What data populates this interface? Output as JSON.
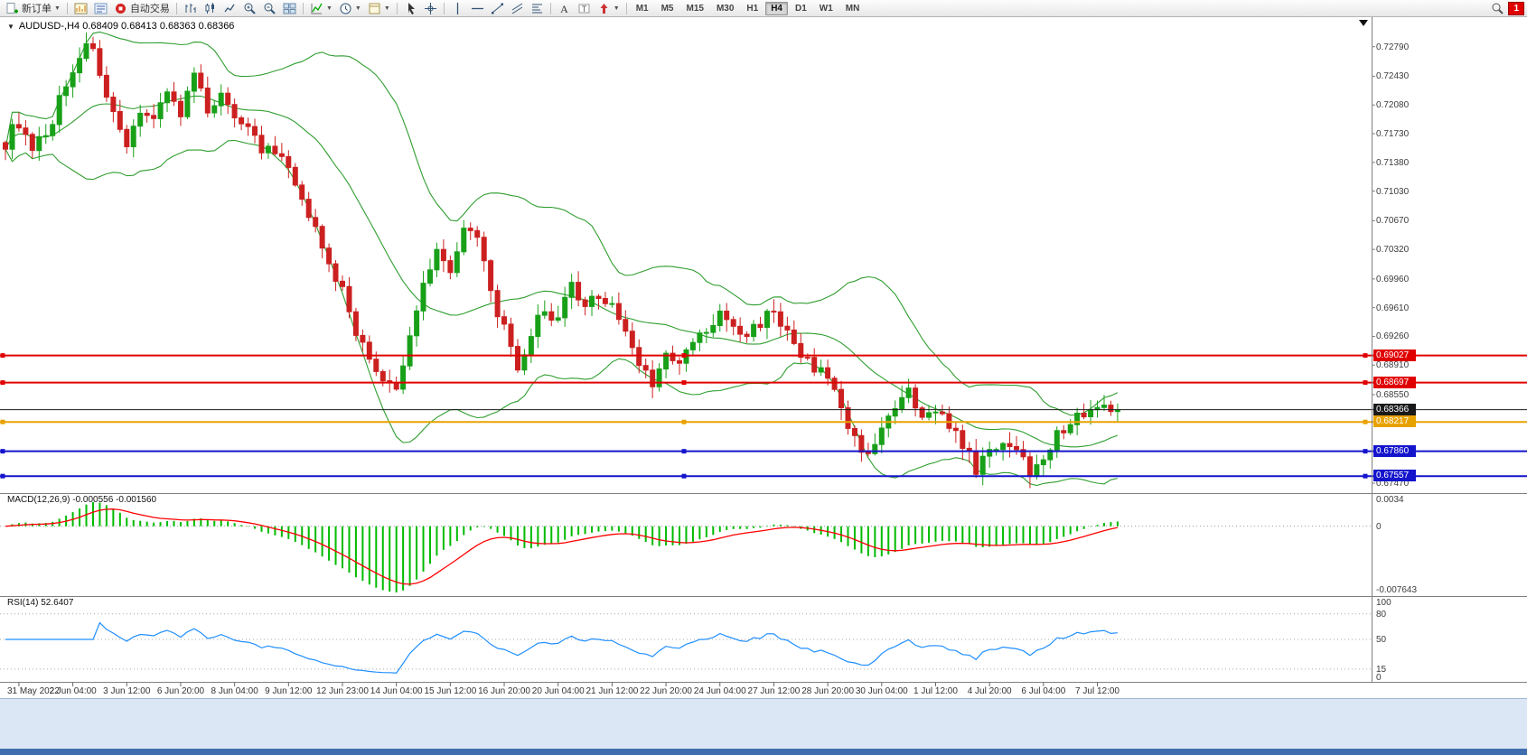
{
  "toolbar": {
    "new_order_label": "新订单",
    "autotrading_label": "自动交易",
    "timeframes": [
      "M1",
      "M5",
      "M15",
      "M30",
      "H1",
      "H4",
      "D1",
      "W1",
      "MN"
    ],
    "active_timeframe": "H4",
    "notification_count": "1"
  },
  "chart": {
    "symbol_line": "AUDUSD-,H4  0.68409 0.68413 0.68363 0.68366",
    "ohlc": {
      "open": "0.68409",
      "high": "0.68413",
      "low": "0.68363",
      "close": "0.68366"
    },
    "price_axis_labels": [
      "0.72790",
      "0.72430",
      "0.72080",
      "0.71730",
      "0.71380",
      "0.71030",
      "0.70670",
      "0.70320",
      "0.69960",
      "0.69610",
      "0.69260",
      "0.68910",
      "0.68550",
      "0.67470"
    ],
    "levels": [
      {
        "price": 0.69027,
        "label": "0.69027",
        "color": "#e00000",
        "width": 2,
        "handles": true
      },
      {
        "price": 0.68697,
        "label": "0.68697",
        "color": "#e00000",
        "width": 2,
        "handles": true
      },
      {
        "price": 0.68366,
        "label": "0.68366",
        "color": "#1a1a1a",
        "width": 1,
        "handles": false
      },
      {
        "price": 0.68217,
        "label": "0.68217",
        "color": "#e8a200",
        "width": 2,
        "handles": true
      },
      {
        "price": 0.6786,
        "label": "0.67860",
        "color": "#1414cc",
        "width": 2,
        "handles": true
      },
      {
        "price": 0.67557,
        "label": "0.67557",
        "color": "#1414cc",
        "width": 2,
        "handles": true
      }
    ],
    "colors": {
      "bull": "#18a018",
      "bear": "#cc2020",
      "bands": "#2f9e2f",
      "macd_hist": "#00bb00",
      "macd_signal": "#ff0000",
      "rsi": "#1f8fff",
      "current": "#1a1a1a"
    }
  },
  "macd": {
    "label": "MACD(12,26,9) -0.000556 -0.001560",
    "axis": [
      {
        "value": 0.0034,
        "text": "0.0034"
      },
      {
        "value": 0,
        "text": "0"
      },
      {
        "value": -0.007643,
        "text": "-0.007643"
      }
    ]
  },
  "rsi": {
    "label": "RSI(14) 52.6407",
    "axis": [
      {
        "value": 100,
        "text": "100"
      },
      {
        "value": 80,
        "text": "80"
      },
      {
        "value": 50,
        "text": "50"
      },
      {
        "value": 15,
        "text": "15"
      },
      {
        "value": 0,
        "text": "0"
      }
    ],
    "dashed_levels": [
      80,
      50,
      15
    ]
  },
  "time_axis": [
    "31 May 2022",
    "2 Jun 04:00",
    "3 Jun 12:00",
    "6 Jun 20:00",
    "8 Jun 04:00",
    "9 Jun 12:00",
    "12 Jun 23:00",
    "14 Jun 04:00",
    "15 Jun 12:00",
    "16 Jun 20:00",
    "20 Jun 04:00",
    "21 Jun 12:00",
    "22 Jun 20:00",
    "24 Jun 04:00",
    "27 Jun 12:00",
    "28 Jun 20:00",
    "30 Jun 04:00",
    "1 Jul 12:00",
    "4 Jul 20:00",
    "6 Jul 04:00",
    "7 Jul 12:00"
  ],
  "chart_data": {
    "type": "candlestick",
    "symbol": "AUDUSD-",
    "timeframe": "H4",
    "title": "AUDUSD-,H4",
    "n_candles": 166,
    "last_close": 0.68366,
    "ylim": [
      0.6735,
      0.7315
    ],
    "wiggle": 0.0016,
    "anchors": [
      [
        0,
        0.7165
      ],
      [
        2,
        0.7185
      ],
      [
        4,
        0.715
      ],
      [
        6,
        0.7168
      ],
      [
        8,
        0.7215
      ],
      [
        11,
        0.7268
      ],
      [
        13,
        0.7282
      ],
      [
        15,
        0.7215
      ],
      [
        18,
        0.7152
      ],
      [
        20,
        0.7205
      ],
      [
        22,
        0.719
      ],
      [
        24,
        0.7228
      ],
      [
        26,
        0.7195
      ],
      [
        28,
        0.7242
      ],
      [
        30,
        0.7205
      ],
      [
        32,
        0.7218
      ],
      [
        34,
        0.7198
      ],
      [
        36,
        0.7185
      ],
      [
        38,
        0.7152
      ],
      [
        40,
        0.7148
      ],
      [
        42,
        0.7132
      ],
      [
        44,
        0.7085
      ],
      [
        46,
        0.7068
      ],
      [
        48,
        0.7008
      ],
      [
        50,
        0.6985
      ],
      [
        52,
        0.6932
      ],
      [
        54,
        0.6898
      ],
      [
        56,
        0.6872
      ],
      [
        58,
        0.6858
      ],
      [
        60,
        0.6925
      ],
      [
        62,
        0.6992
      ],
      [
        64,
        0.7035
      ],
      [
        66,
        0.7002
      ],
      [
        68,
        0.7065
      ],
      [
        70,
        0.7042
      ],
      [
        72,
        0.698
      ],
      [
        74,
        0.6935
      ],
      [
        76,
        0.6878
      ],
      [
        78,
        0.693
      ],
      [
        80,
        0.6958
      ],
      [
        82,
        0.6945
      ],
      [
        84,
        0.6988
      ],
      [
        86,
        0.6955
      ],
      [
        88,
        0.6978
      ],
      [
        90,
        0.6965
      ],
      [
        92,
        0.693
      ],
      [
        94,
        0.6895
      ],
      [
        96,
        0.6872
      ],
      [
        98,
        0.69
      ],
      [
        100,
        0.689
      ],
      [
        102,
        0.692
      ],
      [
        104,
        0.6932
      ],
      [
        106,
        0.695
      ],
      [
        108,
        0.6938
      ],
      [
        110,
        0.6926
      ],
      [
        112,
        0.6946
      ],
      [
        114,
        0.6958
      ],
      [
        116,
        0.6928
      ],
      [
        118,
        0.6898
      ],
      [
        120,
        0.6888
      ],
      [
        122,
        0.6878
      ],
      [
        124,
        0.684
      ],
      [
        126,
        0.6798
      ],
      [
        128,
        0.6786
      ],
      [
        130,
        0.6812
      ],
      [
        132,
        0.6836
      ],
      [
        134,
        0.6858
      ],
      [
        136,
        0.682
      ],
      [
        138,
        0.6842
      ],
      [
        140,
        0.6818
      ],
      [
        142,
        0.6788
      ],
      [
        144,
        0.6766
      ],
      [
        146,
        0.6782
      ],
      [
        148,
        0.6802
      ],
      [
        150,
        0.6788
      ],
      [
        152,
        0.6762
      ],
      [
        154,
        0.6782
      ],
      [
        156,
        0.6804
      ],
      [
        158,
        0.6822
      ],
      [
        160,
        0.6834
      ],
      [
        162,
        0.684
      ],
      [
        164,
        0.6835
      ],
      [
        165,
        0.68366
      ]
    ],
    "overlays": {
      "bollinger": {
        "period": 20,
        "deviation": 2
      }
    },
    "indicators": [
      {
        "name": "MACD",
        "params": [
          12,
          26,
          9
        ],
        "current": [
          -0.000556,
          -0.00156
        ]
      },
      {
        "name": "RSI",
        "params": [
          14
        ],
        "current": 52.6407
      }
    ]
  }
}
